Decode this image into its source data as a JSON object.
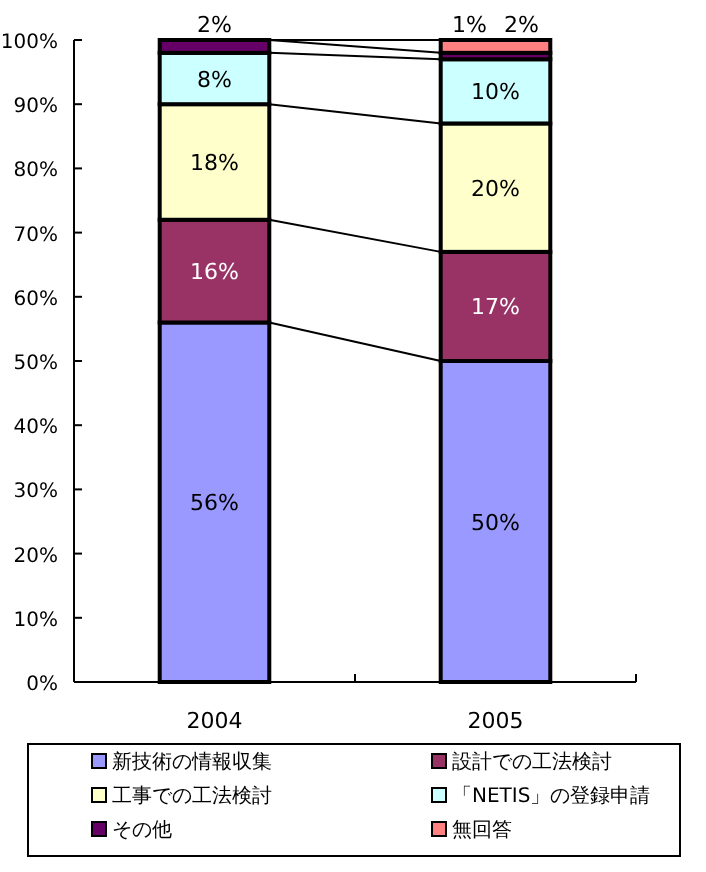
{
  "chart_data": {
    "type": "bar",
    "stacked": true,
    "categories": [
      "2004",
      "2005"
    ],
    "series": [
      {
        "name": "新技術の情報収集",
        "color": "#9999ff",
        "values": [
          56,
          50
        ],
        "value_labels": [
          "56%",
          "50%"
        ]
      },
      {
        "name": "設計での工法検討",
        "color": "#993366",
        "values": [
          16,
          17
        ],
        "value_labels": [
          "16%",
          "17%"
        ]
      },
      {
        "name": "工事での工法検討",
        "color": "#ffffcc",
        "values": [
          18,
          20
        ],
        "value_labels": [
          "18%",
          "20%"
        ]
      },
      {
        "name": "「NETIS」の登録申請",
        "color": "#ccffff",
        "values": [
          8,
          10
        ],
        "value_labels": [
          "8%",
          "10%"
        ]
      },
      {
        "name": "その他",
        "color": "#660066",
        "values": [
          2,
          1
        ],
        "value_labels": [
          "2%",
          "1%"
        ]
      },
      {
        "name": "無回答",
        "color": "#ff8080",
        "values": [
          0,
          2
        ],
        "value_labels": [
          null,
          "2%"
        ]
      }
    ],
    "ylim": [
      0,
      100
    ],
    "yticks": [
      {
        "value": 0,
        "label": "0%"
      },
      {
        "value": 10,
        "label": "10%"
      },
      {
        "value": 20,
        "label": "20%"
      },
      {
        "value": 30,
        "label": "30%"
      },
      {
        "value": 40,
        "label": "40%"
      },
      {
        "value": 50,
        "label": "50%"
      },
      {
        "value": 60,
        "label": "60%"
      },
      {
        "value": 70,
        "label": "70%"
      },
      {
        "value": 80,
        "label": "80%"
      },
      {
        "value": 90,
        "label": "90%"
      },
      {
        "value": 100,
        "label": "100%"
      }
    ],
    "legend": "bottom"
  }
}
